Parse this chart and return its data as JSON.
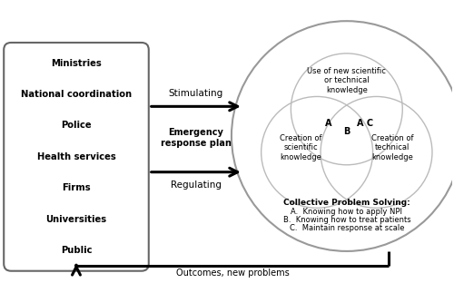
{
  "box_items": [
    "Ministries",
    "National coordination",
    "Police",
    "Health services",
    "Firms",
    "Universities",
    "Public"
  ],
  "venn_labels": [
    "Use of new scientific\nor technical\nknowledge",
    "Creation of\nscientific\nknowledge",
    "Creation of\ntechnical\nknowledge"
  ],
  "intersect_A": "A",
  "intersect_AC": "A C",
  "intersect_B": "B",
  "collective_title": "Collective Problem Solving:",
  "collective_items": [
    "A.  Knowing how to apply NPI",
    "B.  Knowing how to treat patients",
    "C.  Maintain response at scale"
  ],
  "outcomes_label": "Outcomes, new problems",
  "stimulating_label": "Stimulating",
  "emergency_label": "Emergency\nresponse plan",
  "regulating_label": "Regulating",
  "bg_color": "#ffffff",
  "text_color": "#000000",
  "box_edge_color": "#666666",
  "circle_edge_color": "#bbbbbb",
  "outer_circle_color": "#999999",
  "arrow_color": "#000000"
}
